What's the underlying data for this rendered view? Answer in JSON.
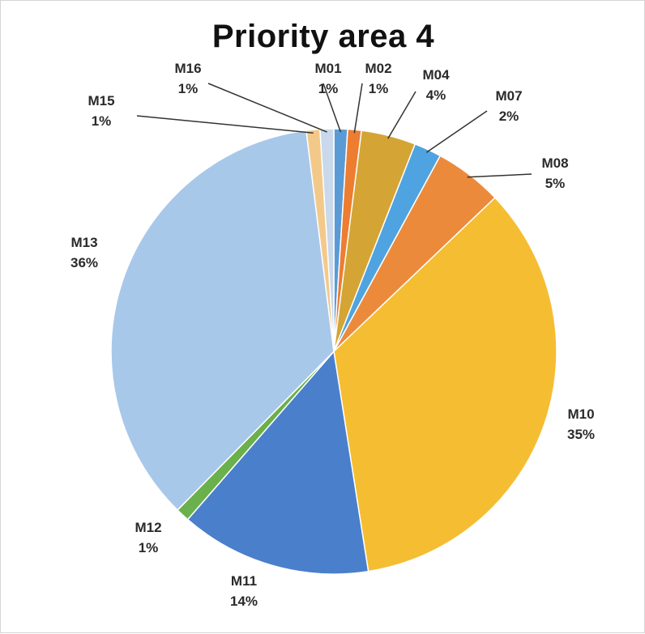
{
  "chart_data": {
    "type": "pie",
    "title": "Priority area 4",
    "slices": [
      {
        "label": "M01",
        "value": 1,
        "pct": "1%",
        "color": "#5b9bd5"
      },
      {
        "label": "M02",
        "value": 1,
        "pct": "1%",
        "color": "#ed7d31"
      },
      {
        "label": "M04",
        "value": 4,
        "pct": "4%",
        "color": "#d4a534"
      },
      {
        "label": "M07",
        "value": 2,
        "pct": "2%",
        "color": "#4fa3e0"
      },
      {
        "label": "M08",
        "value": 5,
        "pct": "5%",
        "color": "#ec8a3c"
      },
      {
        "label": "M10",
        "value": 35,
        "pct": "35%",
        "color": "#f5bd32"
      },
      {
        "label": "M11",
        "value": 14,
        "pct": "14%",
        "color": "#4a7fcc"
      },
      {
        "label": "M12",
        "value": 1,
        "pct": "1%",
        "color": "#6ab04c"
      },
      {
        "label": "M13",
        "value": 36,
        "pct": "36%",
        "color": "#a8c8ea"
      },
      {
        "label": "M15",
        "value": 1,
        "pct": "1%",
        "color": "#f3c98a"
      },
      {
        "label": "M16",
        "value": 1,
        "pct": "1%",
        "color": "#c9d8ea"
      }
    ]
  }
}
